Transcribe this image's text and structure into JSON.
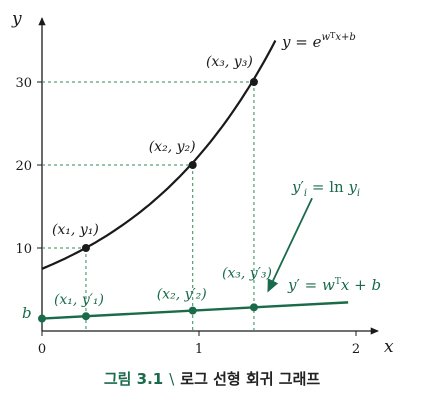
{
  "chart_data": {
    "type": "line",
    "xlabel": "x",
    "ylabel": "y",
    "xlim": [
      0,
      2.05
    ],
    "ylim": [
      0,
      37
    ],
    "x_ticks": [
      "0",
      "1",
      "2"
    ],
    "x_tick_values": [
      0,
      1,
      2
    ],
    "y_ticks": [
      "10",
      "20",
      "30"
    ],
    "y_tick_values": [
      10,
      20,
      30
    ],
    "y_intercept_label": "b",
    "grid": false,
    "series": [
      {
        "name": "y = e^{wᵀx+b}",
        "kind": "exponential",
        "a": 7.5,
        "k": 1.036,
        "x_range": [
          0,
          1.95
        ],
        "color": "#1a1a1a"
      },
      {
        "name": "y′ = wᵀx + b",
        "kind": "linear",
        "intercept": 1.5,
        "slope": 1.0,
        "x_range": [
          0,
          1.95
        ],
        "color": "#1a6b4a"
      }
    ],
    "points_exp": [
      {
        "label": "(x₁, y₁)",
        "x": 0.28,
        "y": 10.0
      },
      {
        "label": "(x₂, y₂)",
        "x": 0.96,
        "y": 20.0
      },
      {
        "label": "(x₃, y₃)",
        "x": 1.35,
        "y": 30.0
      }
    ],
    "points_lin": [
      {
        "label": "(x₁, y′₁)",
        "x": 0.28,
        "y": 1.78
      },
      {
        "label": "(x₂, y′₂)",
        "x": 0.96,
        "y": 2.46
      },
      {
        "label": "(x₃, y′₃)",
        "x": 1.35,
        "y": 2.85
      }
    ],
    "annotation": {
      "text": "y′ᵢ = ln yᵢ",
      "arrow_from": [
        1.72,
        16.0
      ],
      "arrow_to": [
        1.44,
        4.8
      ]
    },
    "curve_labels": {
      "exp": "y = e^{wᵀx+b}",
      "lin": "y′ = wᵀx + b"
    }
  },
  "caption": {
    "number": "그림 3.1",
    "separator": "\\",
    "title": "로그 선형 회귀 그래프"
  },
  "colors": {
    "black": "#1a1a1a",
    "green": "#1a6b4a",
    "dashed": "#2e8b57"
  }
}
